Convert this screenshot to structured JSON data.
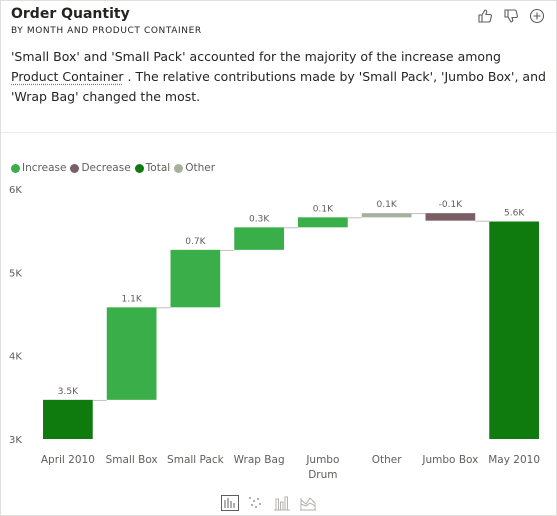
{
  "visual": {
    "title": "Order Quantity",
    "subtitle": "BY MONTH AND PRODUCT CONTAINER",
    "narrative": {
      "part1": "'Small Box' and 'Small Pack' accounted for the majority of the increase among ",
      "link": "Product Container",
      "part2": " . The relative contributions made by 'Small Pack', 'Jumbo Box', and 'Wrap Bag' changed the most."
    },
    "header_icons": [
      "thumbs-up-icon",
      "thumbs-down-icon",
      "add-icon"
    ],
    "footer_icons": [
      "waterfall-chart-icon",
      "scatter-chart-icon",
      "column-chart-icon",
      "ribbon-chart-icon"
    ]
  },
  "legend": [
    {
      "label": "Increase",
      "color": "#3aae49"
    },
    {
      "label": "Decrease",
      "color": "#7b5e66"
    },
    {
      "label": "Total",
      "color": "#0f7b0f"
    },
    {
      "label": "Other",
      "color": "#a5b19d"
    }
  ],
  "chart_data": {
    "type": "waterfall",
    "ylim": [
      3000,
      6000
    ],
    "yticks": [
      {
        "value": 3000,
        "label": "3K"
      },
      {
        "value": 4000,
        "label": "4K"
      },
      {
        "value": 5000,
        "label": "5K"
      },
      {
        "value": 6000,
        "label": "6K"
      }
    ],
    "categories": [
      {
        "name": "April 2010",
        "lines": [
          "April 2010"
        ],
        "kind": "total",
        "start": 3000,
        "end": 3470,
        "label": "3.5K"
      },
      {
        "name": "Small Box",
        "lines": [
          "Small Box"
        ],
        "kind": "increase",
        "start": 3470,
        "end": 4580,
        "label": "1.1K"
      },
      {
        "name": "Small Pack",
        "lines": [
          "Small Pack"
        ],
        "kind": "increase",
        "start": 4580,
        "end": 5270,
        "label": "0.7K"
      },
      {
        "name": "Wrap Bag",
        "lines": [
          "Wrap Bag"
        ],
        "kind": "increase",
        "start": 5270,
        "end": 5540,
        "label": "0.3K"
      },
      {
        "name": "Jumbo Drum",
        "lines": [
          "Jumbo",
          "Drum"
        ],
        "kind": "increase",
        "start": 5540,
        "end": 5660,
        "label": "0.1K"
      },
      {
        "name": "Other",
        "lines": [
          "Other"
        ],
        "kind": "other",
        "start": 5660,
        "end": 5710,
        "label": "0.1K"
      },
      {
        "name": "Jumbo Box",
        "lines": [
          "Jumbo Box"
        ],
        "kind": "decrease",
        "start": 5710,
        "end": 5620,
        "label": "-0.1K"
      },
      {
        "name": "May 2010",
        "lines": [
          "May 2010"
        ],
        "kind": "total",
        "start": 3000,
        "end": 5610,
        "label": "5.6K"
      }
    ]
  }
}
